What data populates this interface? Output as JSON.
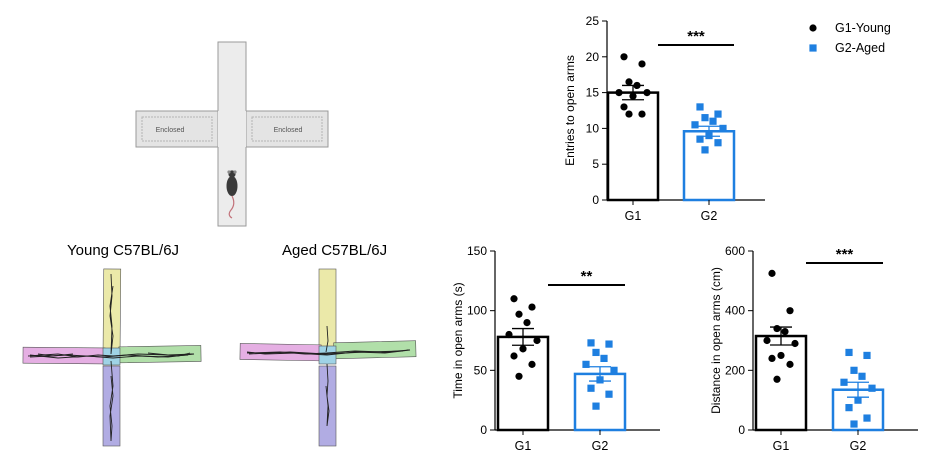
{
  "maze_schematic": {
    "left_arm_label": "Enclosed",
    "right_arm_label": "Enclosed"
  },
  "track_labels": {
    "young": "Young C57BL/6J",
    "aged": "Aged C57BL/6J"
  },
  "colors": {
    "g1": "#000000",
    "g2": "#1e7fe0",
    "arm_top": "#e9e7a0",
    "arm_left": "#e2a6e0",
    "arm_right": "#a9dca0",
    "arm_bottom": "#a9a3e0",
    "center": "#9fd3e6"
  },
  "chart_data": [
    {
      "type": "bar",
      "ylabel": "Entries to open arms",
      "categories": [
        "G1",
        "G2"
      ],
      "ylim": [
        0,
        25
      ],
      "yticks": [
        "0",
        "5",
        "10",
        "15",
        "20",
        "25"
      ],
      "means": [
        15,
        9.6
      ],
      "sem": [
        1.0,
        0.7
      ],
      "points": [
        [
          20,
          19,
          16.5,
          16,
          15,
          15,
          14.5,
          13,
          12,
          12
        ],
        [
          13,
          12,
          11.5,
          11,
          10.5,
          10,
          9,
          8.5,
          8,
          7
        ]
      ],
      "significance": "***",
      "legend": [
        "G1-Young",
        "G2-Aged"
      ]
    },
    {
      "type": "bar",
      "ylabel": "Time in open arms (s)",
      "categories": [
        "G1",
        "G2"
      ],
      "ylim": [
        0,
        150
      ],
      "yticks": [
        "0",
        "50",
        "100",
        "150"
      ],
      "means": [
        78,
        47
      ],
      "sem": [
        7,
        6
      ],
      "points": [
        [
          110,
          103,
          97,
          90,
          80,
          75,
          68,
          62,
          55,
          45
        ],
        [
          73,
          72,
          65,
          60,
          55,
          50,
          42,
          35,
          30,
          20
        ]
      ],
      "significance": "**"
    },
    {
      "type": "bar",
      "ylabel": "Distance in open arms (cm)",
      "categories": [
        "G1",
        "G2"
      ],
      "ylim": [
        0,
        600
      ],
      "yticks": [
        "0",
        "200",
        "400",
        "600"
      ],
      "means": [
        315,
        135
      ],
      "sem": [
        30,
        25
      ],
      "points": [
        [
          525,
          400,
          340,
          330,
          300,
          290,
          250,
          240,
          220,
          170
        ],
        [
          260,
          250,
          200,
          180,
          160,
          140,
          100,
          75,
          40,
          20
        ]
      ],
      "significance": "***"
    }
  ]
}
